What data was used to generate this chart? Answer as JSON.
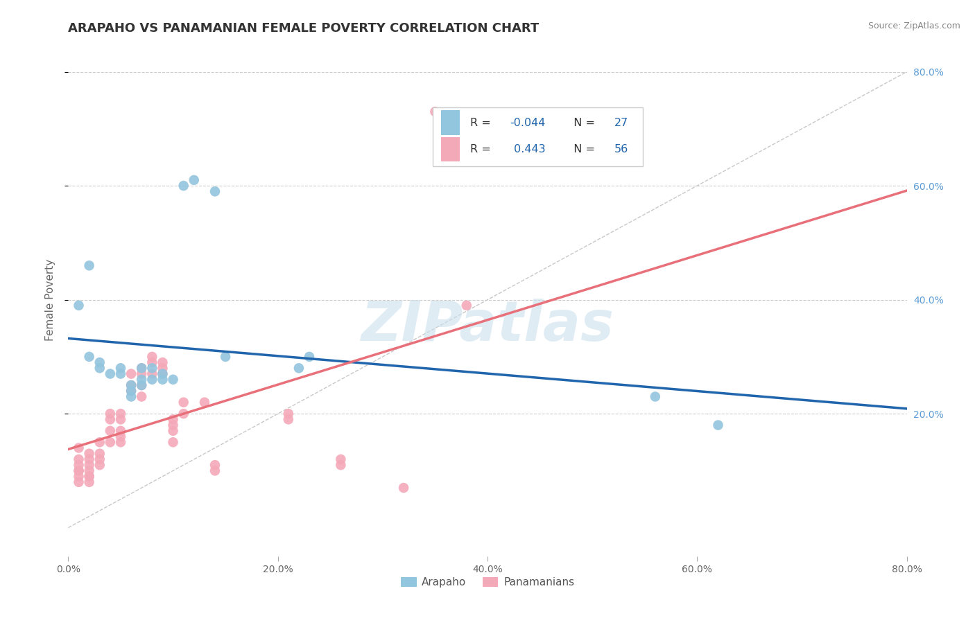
{
  "title": "ARAPAHO VS PANAMANIAN FEMALE POVERTY CORRELATION CHART",
  "source": "Source: ZipAtlas.com",
  "ylabel": "Female Poverty",
  "x_range": [
    0.0,
    0.8
  ],
  "y_range": [
    -0.05,
    0.85
  ],
  "arapaho_R": -0.044,
  "arapaho_N": 27,
  "panamanian_R": 0.443,
  "panamanian_N": 56,
  "arapaho_color": "#92c5de",
  "panamanian_color": "#f4a9b8",
  "arapaho_line_color": "#2166ac",
  "panamanian_line_color": "#e8707a",
  "grid_color": "#cccccc",
  "background_color": "#ffffff",
  "watermark": "ZIPatlas",
  "arapaho_x": [
    0.01,
    0.02,
    0.03,
    0.03,
    0.04,
    0.05,
    0.05,
    0.06,
    0.06,
    0.06,
    0.07,
    0.07,
    0.07,
    0.08,
    0.08,
    0.09,
    0.09,
    0.1,
    0.11,
    0.12,
    0.14,
    0.15,
    0.22,
    0.23,
    0.56,
    0.62,
    0.02
  ],
  "arapaho_y": [
    0.39,
    0.46,
    0.29,
    0.28,
    0.27,
    0.28,
    0.27,
    0.25,
    0.24,
    0.23,
    0.28,
    0.26,
    0.25,
    0.28,
    0.26,
    0.27,
    0.26,
    0.26,
    0.6,
    0.61,
    0.59,
    0.3,
    0.28,
    0.3,
    0.23,
    0.18,
    0.3
  ],
  "panamanian_x": [
    0.01,
    0.01,
    0.01,
    0.01,
    0.01,
    0.01,
    0.01,
    0.02,
    0.02,
    0.02,
    0.02,
    0.02,
    0.02,
    0.02,
    0.03,
    0.03,
    0.03,
    0.03,
    0.04,
    0.04,
    0.04,
    0.04,
    0.05,
    0.05,
    0.05,
    0.05,
    0.05,
    0.06,
    0.06,
    0.06,
    0.07,
    0.07,
    0.07,
    0.07,
    0.08,
    0.08,
    0.08,
    0.09,
    0.09,
    0.09,
    0.1,
    0.1,
    0.1,
    0.1,
    0.11,
    0.11,
    0.13,
    0.14,
    0.14,
    0.21,
    0.21,
    0.26,
    0.26,
    0.32,
    0.35,
    0.38
  ],
  "panamanian_y": [
    0.14,
    0.12,
    0.11,
    0.1,
    0.1,
    0.09,
    0.08,
    0.13,
    0.12,
    0.11,
    0.1,
    0.09,
    0.09,
    0.08,
    0.15,
    0.13,
    0.12,
    0.11,
    0.2,
    0.19,
    0.17,
    0.15,
    0.2,
    0.19,
    0.17,
    0.16,
    0.15,
    0.27,
    0.25,
    0.24,
    0.28,
    0.27,
    0.25,
    0.23,
    0.3,
    0.29,
    0.27,
    0.29,
    0.28,
    0.27,
    0.19,
    0.18,
    0.17,
    0.15,
    0.22,
    0.2,
    0.22,
    0.11,
    0.1,
    0.2,
    0.19,
    0.12,
    0.11,
    0.07,
    0.73,
    0.39
  ]
}
